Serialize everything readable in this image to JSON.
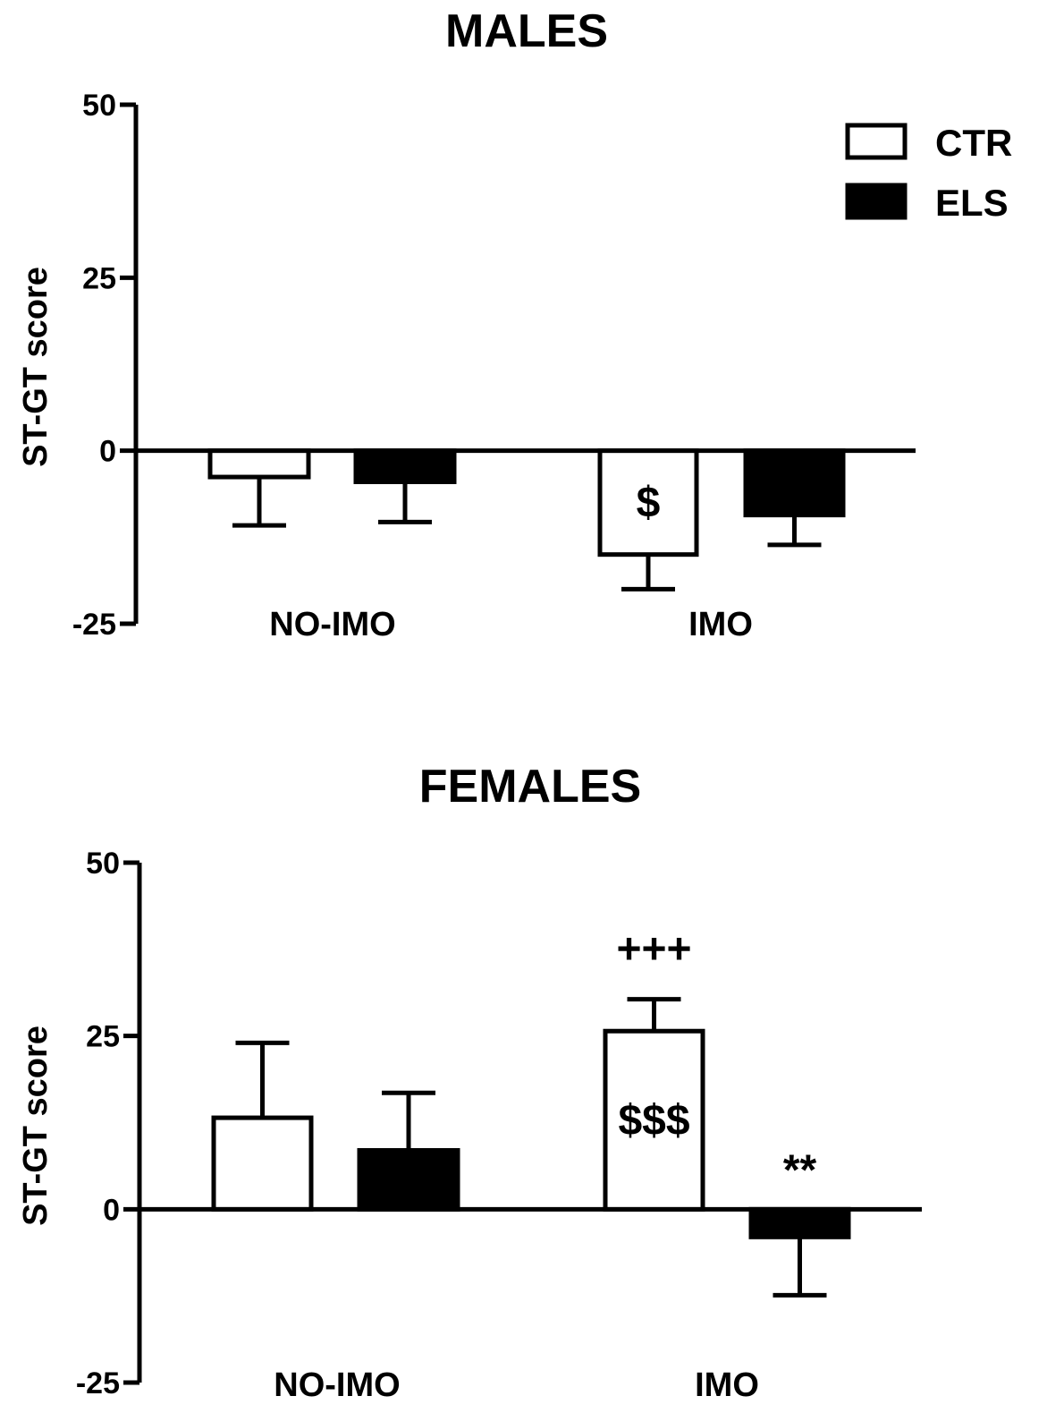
{
  "chart_data": [
    {
      "type": "bar",
      "title": "MALES",
      "ylabel": "ST-GT score",
      "xlabel": "",
      "ylim": [
        -25,
        50
      ],
      "yticks": [
        "-25",
        "0",
        "25",
        "50"
      ],
      "categories": [
        "NO-IMO",
        "IMO"
      ],
      "series": [
        {
          "name": "CTR",
          "fill": "#ffffff",
          "values": [
            -3.8,
            -15
          ],
          "errors": [
            7,
            5
          ]
        },
        {
          "name": "ELS",
          "fill": "#000000",
          "values": [
            -4.5,
            -9.3
          ],
          "errors": [
            5.8,
            4.3
          ]
        }
      ],
      "legend": {
        "position": "top-right",
        "entries": [
          "CTR",
          "ELS"
        ]
      },
      "annotations": [
        {
          "text": "$",
          "series": 0,
          "category": 1,
          "placement": "inside"
        }
      ]
    },
    {
      "type": "bar",
      "title": "FEMALES",
      "ylabel": "ST-GT score",
      "xlabel": "",
      "ylim": [
        -25,
        50
      ],
      "yticks": [
        "-25",
        "0",
        "25",
        "50"
      ],
      "categories": [
        "NO-IMO",
        "IMO"
      ],
      "series": [
        {
          "name": "CTR",
          "fill": "#ffffff",
          "values": [
            13.2,
            25.7
          ],
          "errors": [
            10.8,
            4.6
          ]
        },
        {
          "name": "ELS",
          "fill": "#000000",
          "values": [
            8.5,
            -4
          ],
          "errors": [
            8.3,
            8.4
          ]
        }
      ],
      "annotations": [
        {
          "text": "+++",
          "series": 0,
          "category": 1,
          "placement": "above"
        },
        {
          "text": "$$$",
          "series": 0,
          "category": 1,
          "placement": "inside"
        },
        {
          "text": "**",
          "series": 1,
          "category": 1,
          "placement": "above"
        }
      ]
    }
  ]
}
